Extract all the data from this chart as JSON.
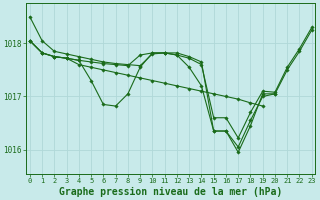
{
  "background_color": "#c8eaea",
  "grid_color": "#b0d8d8",
  "line_color": "#1a6b1a",
  "marker_color": "#1a6b1a",
  "xlabel": "Graphe pression niveau de la mer (hPa)",
  "xlabel_fontsize": 7,
  "xtick_labels": [
    "0",
    "1",
    "2",
    "3",
    "4",
    "5",
    "6",
    "7",
    "8",
    "9",
    "10",
    "11",
    "12",
    "13",
    "14",
    "15",
    "16",
    "17",
    "18",
    "19",
    "20",
    "21",
    "22",
    "23"
  ],
  "yticks": [
    1016,
    1017,
    1018
  ],
  "ylim": [
    1015.55,
    1018.75
  ],
  "xlim": [
    -0.3,
    23.3
  ],
  "series": [
    {
      "x": [
        0,
        1,
        2,
        3,
        4,
        5,
        6,
        7,
        8,
        9,
        10,
        11,
        12,
        13,
        14,
        15,
        16,
        17,
        18,
        19,
        20,
        21,
        22,
        23
      ],
      "y": [
        1018.5,
        1018.05,
        1017.85,
        1017.8,
        1017.75,
        1017.7,
        1017.65,
        1017.62,
        1017.6,
        1017.58,
        1017.8,
        1017.82,
        1017.82,
        1017.75,
        1017.65,
        1016.35,
        1016.35,
        1015.95,
        1016.45,
        1017.05,
        1017.05,
        1017.5,
        1017.85,
        1018.25
      ]
    },
    {
      "x": [
        0,
        1,
        2,
        3,
        4,
        5,
        6,
        7,
        8,
        9,
        10,
        11,
        12,
        13,
        14,
        15,
        16,
        17,
        18,
        19,
        20,
        21,
        22,
        23
      ],
      "y": [
        1018.05,
        1017.82,
        1017.75,
        1017.72,
        1017.68,
        1017.65,
        1017.62,
        1017.6,
        1017.58,
        1017.78,
        1017.82,
        1017.82,
        1017.78,
        1017.72,
        1017.6,
        1016.6,
        1016.6,
        1016.22,
        1016.7,
        1017.1,
        1017.08,
        1017.55,
        1017.9,
        1018.3
      ]
    },
    {
      "x": [
        0,
        1,
        2,
        3,
        4,
        5,
        6,
        7,
        8,
        9,
        10,
        11,
        12,
        13,
        14,
        15,
        16,
        17,
        18,
        19,
        20,
        21,
        22,
        23
      ],
      "y": [
        1018.05,
        1017.82,
        1017.75,
        1017.72,
        1017.68,
        1017.3,
        1016.85,
        1016.82,
        1017.05,
        1017.55,
        1017.82,
        1017.82,
        1017.78,
        1017.55,
        1017.2,
        1016.35,
        1016.35,
        1016.05,
        1016.55,
        1017.0,
        1017.05,
        null,
        null,
        null
      ]
    },
    {
      "x": [
        0,
        1,
        2,
        3,
        4,
        5,
        6,
        7,
        8,
        9,
        10,
        11,
        12,
        13,
        14,
        15,
        16,
        17,
        18,
        19,
        20
      ],
      "y": [
        1018.05,
        1017.82,
        1017.75,
        1017.72,
        1017.6,
        1017.55,
        1017.5,
        1017.45,
        1017.4,
        1017.35,
        1017.3,
        1017.25,
        1017.2,
        1017.15,
        1017.1,
        1017.05,
        1017.0,
        1016.95,
        1016.88,
        1016.82,
        null
      ]
    }
  ]
}
